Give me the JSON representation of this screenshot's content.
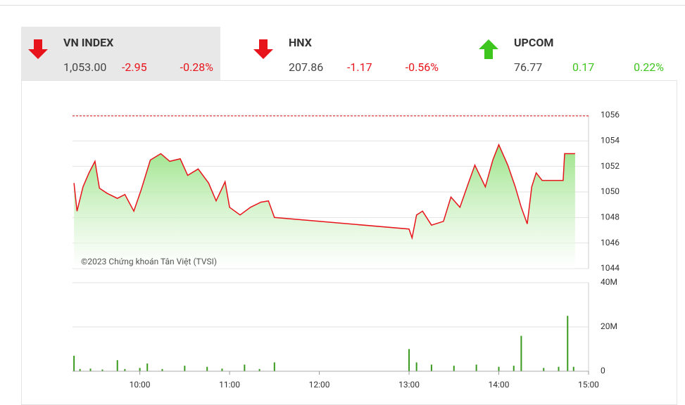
{
  "indices": [
    {
      "name": "VN INDEX",
      "value": "1,053.00",
      "change": "-2.95",
      "percent": "-0.28%",
      "direction": "down",
      "active": true
    },
    {
      "name": "HNX",
      "value": "207.86",
      "change": "-1.17",
      "percent": "-0.56%",
      "direction": "down",
      "active": false
    },
    {
      "name": "UPCOM",
      "value": "76.77",
      "change": "0.17",
      "percent": "0.22%",
      "direction": "up",
      "active": false
    }
  ],
  "chart_data": [
    {
      "type": "line",
      "color": "#e8141b",
      "reference": 1055.95,
      "annotation": "©2023 Chứng khoán Tân Việt (TVSI)",
      "xlim": [
        "09:15",
        "15:00"
      ],
      "ylim": [
        1044,
        1056
      ],
      "yticks": [
        1044,
        1046,
        1048,
        1050,
        1052,
        1054,
        1056
      ],
      "grid": true,
      "x": [
        "09:16",
        "09:18",
        "09:22",
        "09:26",
        "09:30",
        "09:33",
        "09:38",
        "09:45",
        "09:50",
        "09:56",
        "10:01",
        "10:07",
        "10:14",
        "10:20",
        "10:27",
        "10:32",
        "10:39",
        "10:46",
        "10:51",
        "10:57",
        "11:00",
        "11:07",
        "11:14",
        "11:21",
        "11:26",
        "11:30",
        "13:00",
        "13:02",
        "13:05",
        "13:09",
        "13:15",
        "13:23",
        "13:28",
        "13:34",
        "13:40",
        "13:44",
        "13:51",
        "13:56",
        "14:00",
        "14:06",
        "14:11",
        "14:15",
        "14:19",
        "14:22",
        "14:25",
        "14:29",
        "14:43",
        "14:44",
        "14:51"
      ],
      "values": [
        1050.7,
        1048.5,
        1050.4,
        1051.5,
        1052.4,
        1050.3,
        1049.9,
        1049.5,
        1049.8,
        1048.5,
        1050.2,
        1052.5,
        1053.0,
        1052.4,
        1052.6,
        1051.3,
        1051.8,
        1050.7,
        1049.3,
        1050.8,
        1048.8,
        1048.2,
        1048.8,
        1049.2,
        1049.3,
        1048.0,
        1047.1,
        1046.4,
        1048.2,
        1048.5,
        1047.4,
        1047.7,
        1049.6,
        1048.8,
        1050.8,
        1052.1,
        1050.4,
        1052.5,
        1053.7,
        1052.1,
        1050.4,
        1048.8,
        1047.5,
        1050.4,
        1051.5,
        1050.9,
        1050.9,
        1053.0,
        1053.0
      ]
    },
    {
      "type": "bar",
      "color": "#3a9a1e",
      "xlim": [
        "09:15",
        "15:00"
      ],
      "ylim": [
        0,
        40000000
      ],
      "yticks": [
        0,
        {
          "value": 20000000,
          "label": "20M"
        },
        {
          "value": 40000000,
          "label": "40M"
        }
      ],
      "grid": true,
      "xticks": [
        {
          "value": "10:00",
          "label": "10:00"
        },
        {
          "value": "11:00",
          "label": "11:00"
        },
        {
          "value": "12:00",
          "label": "12:00"
        },
        {
          "value": "13:00",
          "label": "13:00"
        },
        {
          "value": "14:00",
          "label": "14:00"
        },
        {
          "value": "15:00",
          "label": "15:00"
        }
      ],
      "x": [
        "09:16",
        "09:20",
        "09:27",
        "09:35",
        "09:45",
        "09:50",
        "10:00",
        "10:05",
        "10:15",
        "10:30",
        "10:45",
        "10:55",
        "11:10",
        "11:20",
        "11:30",
        "13:00",
        "13:05",
        "13:15",
        "13:30",
        "13:45",
        "14:00",
        "14:10",
        "14:15",
        "14:30",
        "14:40",
        "14:46",
        "14:50"
      ],
      "values": [
        7000000,
        1000000,
        1200000,
        800000,
        5000000,
        1000000,
        1500000,
        3500000,
        1000000,
        2500000,
        2000000,
        1200000,
        3000000,
        1000000,
        4000000,
        10000000,
        4000000,
        3000000,
        2500000,
        3000000,
        2000000,
        2500000,
        16000000,
        1500000,
        2000000,
        25000000,
        2000000
      ]
    }
  ]
}
